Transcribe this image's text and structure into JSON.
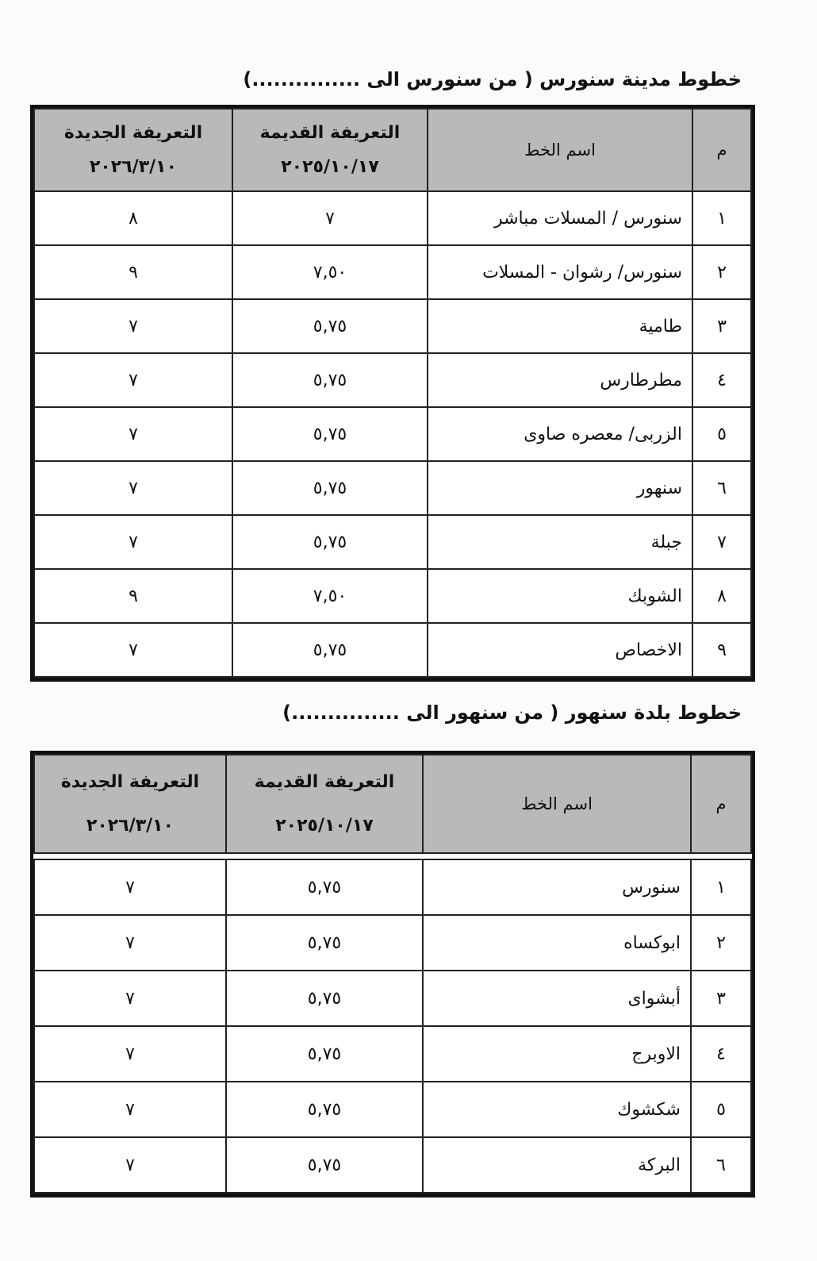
{
  "sections": [
    {
      "title": "خطوط مدينة سنورس ( من سنورس الى ...............)",
      "headers": {
        "num": "م",
        "line_name": "اسم الخط",
        "old_fare": "التعريفة القديمة",
        "old_date": "٢٠٢٥/١٠/١٧",
        "new_fare": "التعريفة الجديدة",
        "new_date": "٢٠٢٦/٣/١٠"
      },
      "rows": [
        {
          "num": "١",
          "name": "سنورس / المسلات مباشر",
          "old": "٧",
          "new": "٨"
        },
        {
          "num": "٢",
          "name": "سنورس/ رشوان - المسلات",
          "old": "٧,٥٠",
          "new": "٩"
        },
        {
          "num": "٣",
          "name": "طامية",
          "old": "٥,٧٥",
          "new": "٧"
        },
        {
          "num": "٤",
          "name": "مطرطارس",
          "old": "٥,٧٥",
          "new": "٧"
        },
        {
          "num": "٥",
          "name": "الزربى/ معصره صاوى",
          "old": "٥,٧٥",
          "new": "٧"
        },
        {
          "num": "٦",
          "name": "سنهور",
          "old": "٥,٧٥",
          "new": "٧"
        },
        {
          "num": "٧",
          "name": "جبلة",
          "old": "٥,٧٥",
          "new": "٧"
        },
        {
          "num": "٨",
          "name": "الشوبك",
          "old": "٧,٥٠",
          "new": "٩"
        },
        {
          "num": "٩",
          "name": "الاخصاص",
          "old": "٥,٧٥",
          "new": "٧"
        }
      ]
    },
    {
      "title": "خطوط بلدة سنهور ( من سنهور الى ...............)",
      "headers": {
        "num": "م",
        "line_name": "اسم الخط",
        "old_fare": "التعريفة القديمة",
        "old_date": "٢٠٢٥/١٠/١٧",
        "new_fare": "التعريفة الجديدة",
        "new_date": "٢٠٢٦/٣/١٠"
      },
      "rows": [
        {
          "num": "١",
          "name": "سنورس",
          "old": "٥,٧٥",
          "new": "٧"
        },
        {
          "num": "٢",
          "name": "ابوكساه",
          "old": "٥,٧٥",
          "new": "٧"
        },
        {
          "num": "٣",
          "name": "أبشواى",
          "old": "٥,٧٥",
          "new": "٧"
        },
        {
          "num": "٤",
          "name": "الاوبرج",
          "old": "٥,٧٥",
          "new": "٧"
        },
        {
          "num": "٥",
          "name": "شكشوك",
          "old": "٥,٧٥",
          "new": "٧"
        },
        {
          "num": "٦",
          "name": "البركة",
          "old": "٥,٧٥",
          "new": "٧"
        }
      ]
    }
  ]
}
